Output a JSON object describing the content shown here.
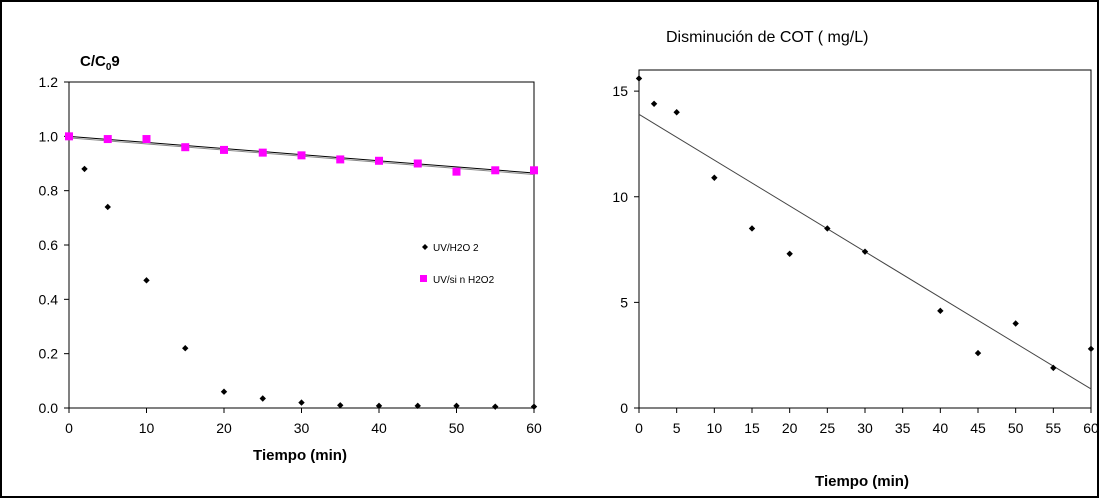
{
  "chart_data": [
    {
      "type": "scatter",
      "title": "",
      "ylabel": "C/C₀9",
      "xlabel": "Tiempo (min)",
      "xlim": [
        0,
        60
      ],
      "ylim": [
        0,
        1.2
      ],
      "xticks": [
        0,
        10,
        20,
        30,
        40,
        50,
        60
      ],
      "yticks": [
        "0.0",
        "0.2",
        "0.4",
        "0.6",
        "0.8",
        "1.0",
        "1.2"
      ],
      "grid": false,
      "legend_position": "center-right",
      "series": [
        {
          "name": "UV/H2O 2",
          "marker": "diamond",
          "color": "#000000",
          "x": [
            0,
            2,
            5,
            10,
            15,
            20,
            25,
            30,
            35,
            40,
            45,
            50,
            55,
            60
          ],
          "y": [
            1.0,
            0.88,
            0.74,
            0.47,
            0.22,
            0.06,
            0.035,
            0.02,
            0.01,
            0.008,
            0.008,
            0.008,
            0.005,
            0.005
          ]
        },
        {
          "name": "UV/si n H2O2",
          "marker": "square",
          "color": "#ff00ff",
          "x": [
            0,
            5,
            10,
            15,
            20,
            25,
            30,
            35,
            40,
            45,
            50,
            55,
            60
          ],
          "y": [
            1.0,
            0.99,
            0.99,
            0.96,
            0.95,
            0.94,
            0.93,
            0.915,
            0.91,
            0.9,
            0.87,
            0.875,
            0.875
          ]
        }
      ],
      "trendline": {
        "x": [
          0,
          60
        ],
        "y": [
          1.0,
          0.865
        ]
      }
    },
    {
      "type": "scatter",
      "title": "Disminución de COT ( mg/L)",
      "xlabel": "Tiempo (min)",
      "ylabel": "",
      "xlim": [
        0,
        60
      ],
      "ylim": [
        0,
        16
      ],
      "xticks": [
        0,
        5,
        10,
        15,
        20,
        25,
        30,
        35,
        40,
        45,
        50,
        55,
        60
      ],
      "yticks": [
        0,
        5,
        10,
        15
      ],
      "grid": false,
      "series": [
        {
          "color": "#000000",
          "marker": "diamond",
          "x": [
            0,
            2,
            5,
            10,
            15,
            20,
            25,
            30,
            40,
            45,
            50,
            55,
            60
          ],
          "y": [
            15.6,
            14.4,
            14.0,
            10.9,
            8.5,
            7.3,
            8.5,
            7.4,
            4.6,
            2.6,
            4.0,
            1.9,
            2.8
          ]
        }
      ],
      "trendline": {
        "x": [
          0,
          60
        ],
        "y": [
          13.9,
          0.9
        ]
      }
    }
  ]
}
